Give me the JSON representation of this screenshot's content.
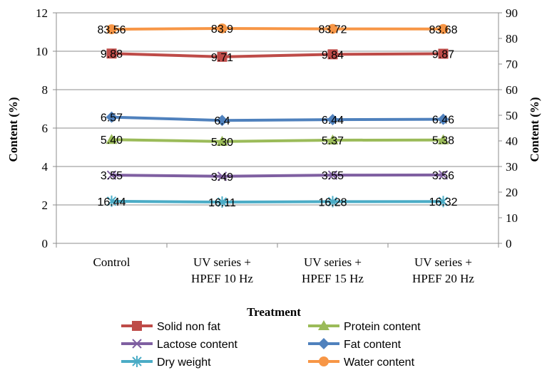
{
  "chart_data": {
    "type": "line",
    "categories": [
      [
        "Control"
      ],
      [
        "UV series +",
        "HPEF 10 Hz"
      ],
      [
        "UV series +",
        "HPEF 15 Hz"
      ],
      [
        "UV series +",
        "HPEF 20 Hz"
      ]
    ],
    "xlabel": "Treatment",
    "ylabel": "Content (%)",
    "y2label": "Content (%)",
    "ylim": [
      0,
      12
    ],
    "y2lim": [
      0,
      90
    ],
    "yticks": [
      "0",
      "2",
      "4",
      "6",
      "8",
      "10",
      "12"
    ],
    "y2ticks": [
      "0",
      "10",
      "20",
      "30",
      "40",
      "50",
      "60",
      "70",
      "80",
      "90"
    ],
    "grid": true,
    "legend_position": "bottom",
    "series": [
      {
        "name": "Solid non fat",
        "axis": "left",
        "values": [
          9.88,
          9.71,
          9.84,
          9.87
        ],
        "labels": [
          "9.88",
          "9.71",
          "9.84",
          "9.87"
        ],
        "color": "#be4b48",
        "marker": "square"
      },
      {
        "name": "Protein content",
        "axis": "left",
        "values": [
          5.4,
          5.3,
          5.37,
          5.38
        ],
        "labels": [
          "5.40",
          "5.30",
          "5.37",
          "5.38"
        ],
        "color": "#9bbb59",
        "marker": "triangle"
      },
      {
        "name": "Lactose content",
        "axis": "left",
        "values": [
          3.55,
          3.49,
          3.55,
          3.56
        ],
        "labels": [
          "3.55",
          "3.49",
          "3.55",
          "3.56"
        ],
        "color": "#7f5fa1",
        "marker": "x"
      },
      {
        "name": "Fat content",
        "axis": "left",
        "values": [
          6.57,
          6.4,
          6.44,
          6.46
        ],
        "labels": [
          "6.57",
          "6.4",
          "6.44",
          "6.46"
        ],
        "color": "#4f81bd",
        "marker": "diamond"
      },
      {
        "name": "Dry weight",
        "axis": "right",
        "values": [
          16.44,
          16.11,
          16.28,
          16.32
        ],
        "labels": [
          "16.44",
          "16.11",
          "16.28",
          "16.32"
        ],
        "color": "#4bacc6",
        "marker": "star"
      },
      {
        "name": "Water content",
        "axis": "right",
        "values": [
          83.56,
          83.9,
          83.72,
          83.68
        ],
        "labels": [
          "83.56",
          "83.9",
          "83.72",
          "83.68"
        ],
        "color": "#f79646",
        "marker": "circle"
      }
    ]
  }
}
